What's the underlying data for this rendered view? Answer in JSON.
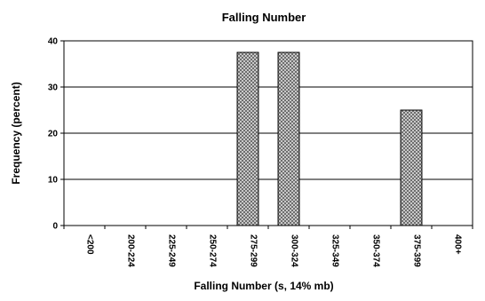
{
  "chart_data": {
    "type": "bar",
    "title": "Falling Number",
    "xlabel": "Falling Number (s, 14% mb)",
    "ylabel": "Frequency (percent)",
    "ylim": [
      0,
      40
    ],
    "yticks": [
      0,
      10,
      20,
      30,
      40
    ],
    "grid": true,
    "categories": [
      "<200",
      "200-224",
      "225-249",
      "250-274",
      "275-299",
      "300-324",
      "325-349",
      "350-374",
      "375-399",
      "400+"
    ],
    "values": [
      0,
      0,
      0,
      0,
      37.5,
      37.5,
      0,
      0,
      25,
      0
    ],
    "colors": {
      "bar_fill": "#c8c8c8",
      "bar_pattern": "#6e6e6e",
      "axis": "#000000"
    }
  }
}
